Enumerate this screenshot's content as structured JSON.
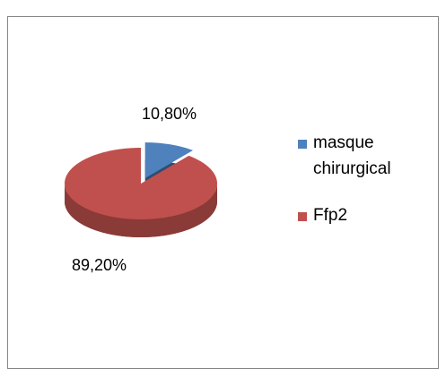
{
  "chart_data": {
    "type": "pie",
    "categories": [
      "masque chirurgical",
      "Ffp2"
    ],
    "values": [
      10.8,
      89.2
    ],
    "value_labels": [
      "10,80%",
      "89,20%"
    ],
    "colors": [
      "#4f81bd",
      "#c0504d"
    ],
    "legend": "right"
  }
}
